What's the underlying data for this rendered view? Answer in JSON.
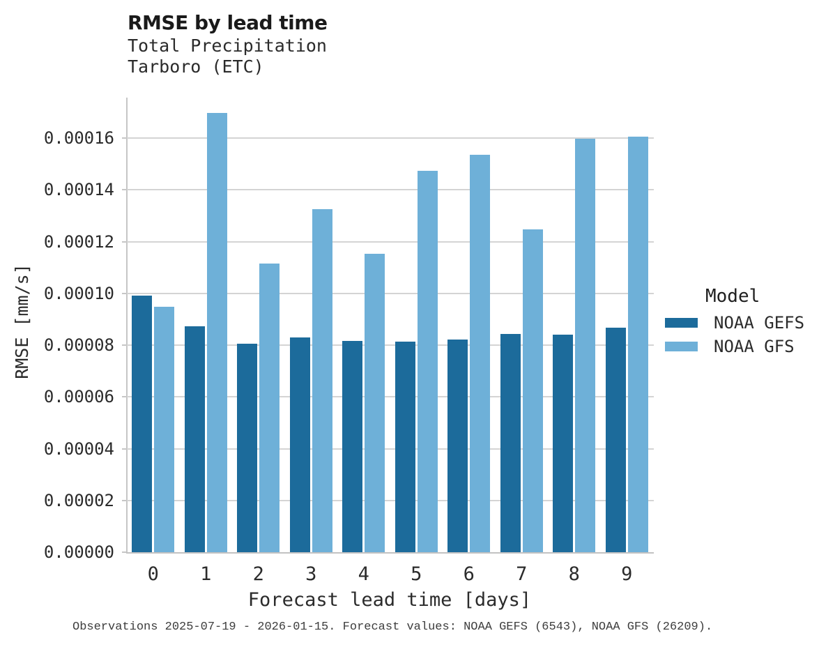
{
  "title": "RMSE by lead time",
  "subtitle_line1": "Total Precipitation",
  "subtitle_line2": "Tarboro (ETC)",
  "footer": "Observations 2025-07-19 - 2026-01-15. Forecast values: NOAA GEFS (6543), NOAA GFS (26209).",
  "legend": {
    "title": "Model",
    "items": [
      {
        "label": "NOAA GEFS",
        "color": "#1c6b9b"
      },
      {
        "label": "NOAA GFS",
        "color": "#6eb0d8"
      }
    ]
  },
  "colors": {
    "gefs_dark_blue": "#1c6b9b",
    "gfs_light_blue": "#6eb0d8",
    "gridline_gray": "#d4d4d4",
    "axis_gray": "#c2c2c2",
    "text_dark": "#2b2b2b",
    "footer_gray": "#3d3d3d"
  },
  "chart_data": {
    "type": "bar",
    "title": "RMSE by lead time",
    "subtitle": [
      "Total Precipitation",
      "Tarboro (ETC)"
    ],
    "xlabel": "Forecast lead time [days]",
    "ylabel": "RMSE [mm/s]",
    "categories": [
      "0",
      "1",
      "2",
      "3",
      "4",
      "5",
      "6",
      "7",
      "8",
      "9"
    ],
    "series": [
      {
        "name": "NOAA GEFS",
        "color": "#1c6b9b",
        "values": [
          9.9e-05,
          8.73e-05,
          8.06e-05,
          8.29e-05,
          8.17e-05,
          8.13e-05,
          8.22e-05,
          8.44e-05,
          8.4e-05,
          8.66e-05
        ]
      },
      {
        "name": "NOAA GFS",
        "color": "#6eb0d8",
        "values": [
          9.48e-05,
          0.0001698,
          0.0001116,
          0.0001326,
          0.0001152,
          0.0001474,
          0.0001535,
          0.0001248,
          0.0001598,
          0.0001606
        ]
      }
    ],
    "ylim": [
      0,
      0.000175
    ],
    "yticks": [
      0,
      2e-05,
      4e-05,
      6e-05,
      8e-05,
      0.0001,
      0.00012,
      0.00014,
      0.00016
    ],
    "ytick_labels": [
      "0.00000",
      "0.00002",
      "0.00004",
      "0.00006",
      "0.00008",
      "0.00010",
      "0.00012",
      "0.00014",
      "0.00016"
    ],
    "grid": true,
    "legend_title": "Model",
    "legend_position": "right",
    "footnote": "Observations 2025-07-19 - 2026-01-15. Forecast values: NOAA GEFS (6543), NOAA GFS (26209)."
  }
}
